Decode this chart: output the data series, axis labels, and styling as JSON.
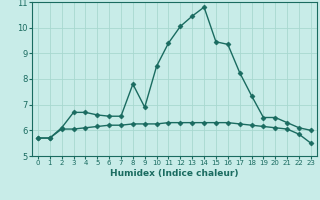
{
  "xlabel": "Humidex (Indice chaleur)",
  "ylabel": "",
  "xlim": [
    -0.5,
    23.5
  ],
  "ylim": [
    5,
    11
  ],
  "yticks": [
    5,
    6,
    7,
    8,
    9,
    10,
    11
  ],
  "xticks": [
    0,
    1,
    2,
    3,
    4,
    5,
    6,
    7,
    8,
    9,
    10,
    11,
    12,
    13,
    14,
    15,
    16,
    17,
    18,
    19,
    20,
    21,
    22,
    23
  ],
  "bg_color": "#c8ece8",
  "grid_color": "#a8d8d0",
  "line_color": "#1a6b60",
  "line1_x": [
    0,
    1,
    2,
    3,
    4,
    5,
    6,
    7,
    8,
    9,
    10,
    11,
    12,
    13,
    14,
    15,
    16,
    17,
    18,
    19,
    20,
    21,
    22,
    23
  ],
  "line1_y": [
    5.7,
    5.7,
    6.1,
    6.7,
    6.7,
    6.6,
    6.55,
    6.55,
    7.8,
    6.9,
    8.5,
    9.4,
    10.05,
    10.45,
    10.8,
    9.45,
    9.35,
    8.25,
    7.35,
    6.5,
    6.5,
    6.3,
    6.1,
    6.0
  ],
  "line2_x": [
    0,
    1,
    2,
    3,
    4,
    5,
    6,
    7,
    8,
    9,
    10,
    11,
    12,
    13,
    14,
    15,
    16,
    17,
    18,
    19,
    20,
    21,
    22,
    23
  ],
  "line2_y": [
    5.7,
    5.7,
    6.05,
    6.05,
    6.1,
    6.15,
    6.2,
    6.2,
    6.25,
    6.25,
    6.25,
    6.3,
    6.3,
    6.3,
    6.3,
    6.3,
    6.3,
    6.25,
    6.2,
    6.15,
    6.1,
    6.05,
    5.85,
    5.5
  ],
  "marker": "D",
  "marker_size": 2.5,
  "linewidth": 1.0
}
